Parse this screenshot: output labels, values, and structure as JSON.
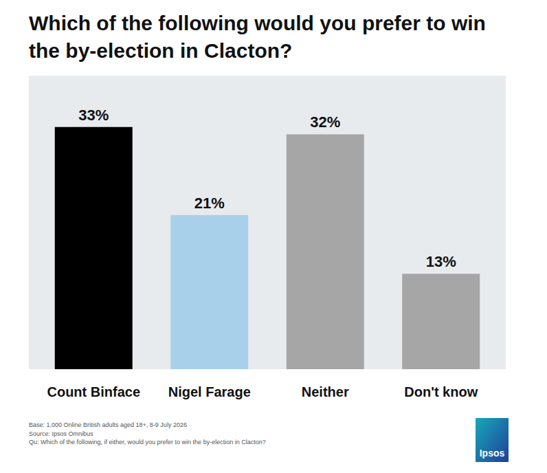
{
  "chart_data": {
    "type": "bar",
    "title": "Which of the following would you prefer to win the by-election in Clacton?",
    "categories": [
      "Count Binface",
      "Nigel Farage",
      "Neither",
      "Don't know"
    ],
    "values": [
      33,
      21,
      32,
      13
    ],
    "value_labels": [
      "33%",
      "21%",
      "32%",
      "13%"
    ],
    "colors": [
      "#000000",
      "#a9d0ea",
      "#a6a6a6",
      "#a6a6a6"
    ],
    "ylim": [
      0,
      40
    ],
    "grid": false,
    "data_labels": true,
    "tick_labels": false,
    "footnotes": [
      "Base: 1,000 Online British adults aged 18+, 8-9 July 2026",
      "Source: Ipsos Omnibus",
      "Qu: Which of the following, if either, would you prefer to win the by-election in Clacton?"
    ],
    "logo": "Ipsos"
  }
}
